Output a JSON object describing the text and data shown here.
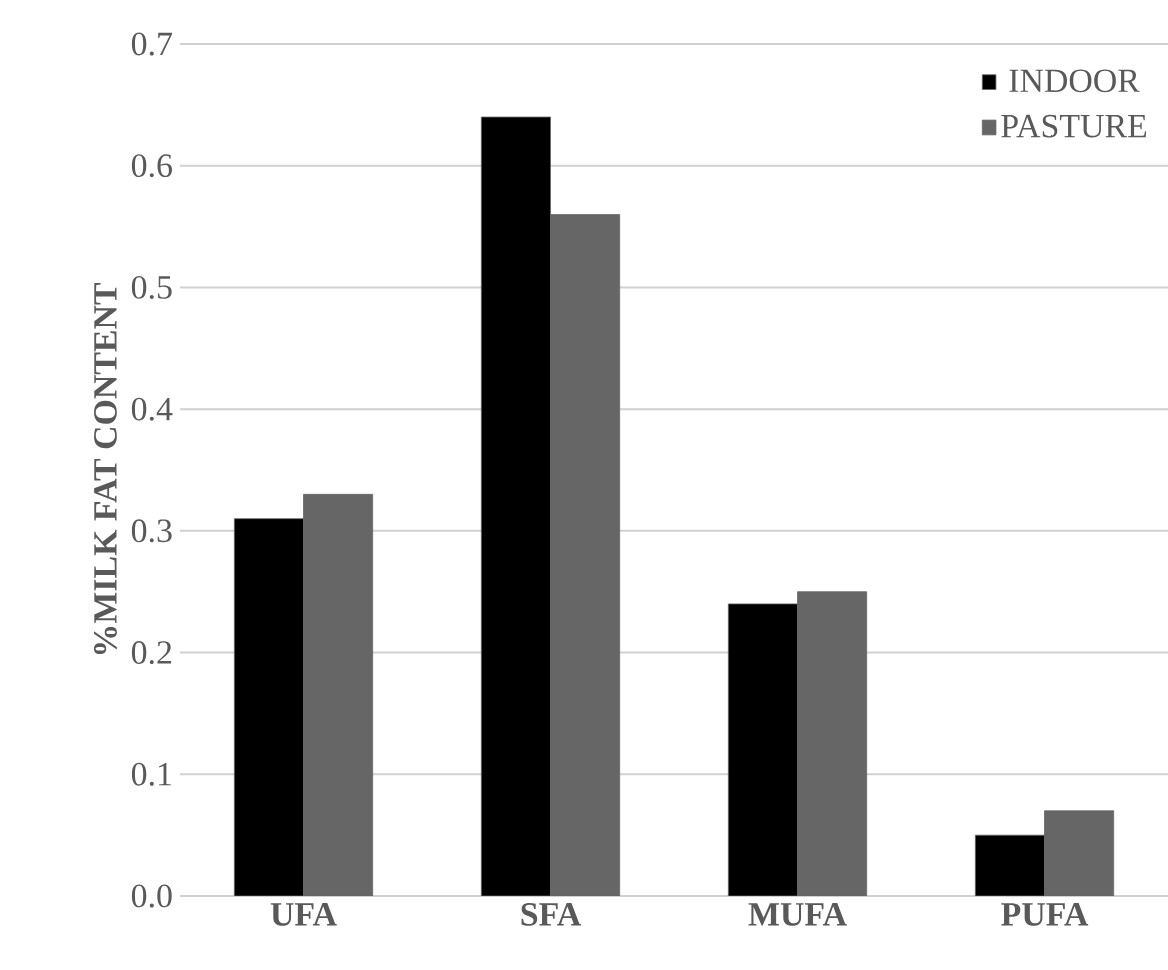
{
  "chart_data": {
    "type": "bar",
    "ylabel": "%MILK FAT CONTENT",
    "categories": [
      "UFA",
      "SFA",
      "MUFA",
      "PUFA"
    ],
    "series": [
      {
        "name": "INDOOR",
        "color": "#000000",
        "values": [
          0.31,
          0.64,
          0.24,
          0.05
        ]
      },
      {
        "name": "PASTURE",
        "color": "#666666",
        "values": [
          0.33,
          0.56,
          0.25,
          0.07
        ]
      }
    ],
    "ylim": [
      0,
      0.7
    ],
    "yticks": [
      {
        "value": 0,
        "label": "0.0"
      },
      0.1,
      0.2,
      0.3,
      0.4,
      0.5,
      0.6,
      0.7
    ],
    "grid": "y",
    "legend": "top right"
  }
}
